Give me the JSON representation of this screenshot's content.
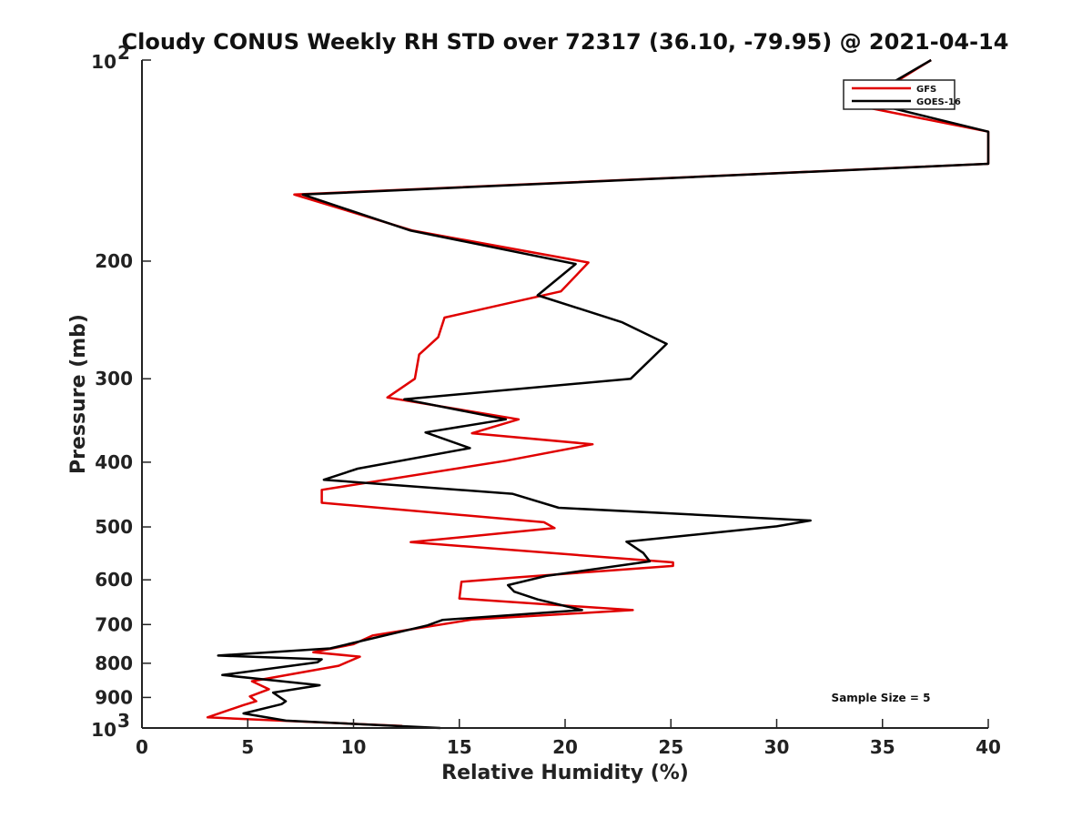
{
  "chart_data": {
    "type": "line",
    "title": "Cloudy CONUS Weekly RH STD over 72317 (36.10, -79.95) @ 2021-04-14",
    "xlabel": "Relative Humidity (%)",
    "ylabel": "Pressure (mb)",
    "xlim": [
      0,
      40
    ],
    "ylim": [
      100,
      1000
    ],
    "yscale": "log",
    "yreversed": true,
    "grid": false,
    "legend_position": "top-right",
    "x_ticks": [
      "0",
      "5",
      "10",
      "15",
      "20",
      "25",
      "30",
      "35",
      "40"
    ],
    "y_ticks": [
      {
        "value": 200,
        "label": "200"
      },
      {
        "value": 300,
        "label": "300"
      },
      {
        "value": 400,
        "label": "400"
      },
      {
        "value": 500,
        "label": "500"
      },
      {
        "value": 600,
        "label": "600"
      },
      {
        "value": 700,
        "label": "700"
      },
      {
        "value": 800,
        "label": "800"
      },
      {
        "value": 900,
        "label": "900"
      }
    ],
    "y_tick_exponents": [
      {
        "value": 100,
        "base": "10",
        "exp": "2"
      },
      {
        "value": 1000,
        "base": "10",
        "exp": "3"
      }
    ],
    "annotation": "Sample Size = 5",
    "series": [
      {
        "name": "GFS",
        "color": "#e00000",
        "points": [
          [
            37.3,
            100
          ],
          [
            33.8,
            117
          ],
          [
            40,
            128
          ],
          [
            40,
            143
          ],
          [
            7.2,
            159
          ],
          [
            12.8,
            180
          ],
          [
            21.1,
            201
          ],
          [
            19.8,
            222
          ],
          [
            14.3,
            243
          ],
          [
            14.0,
            260
          ],
          [
            13.1,
            276
          ],
          [
            12.9,
            300
          ],
          [
            11.6,
            320
          ],
          [
            17.8,
            345
          ],
          [
            15.6,
            362
          ],
          [
            21.3,
            376
          ],
          [
            17.2,
            398
          ],
          [
            8.5,
            440
          ],
          [
            8.5,
            460
          ],
          [
            19.0,
            492
          ],
          [
            19.5,
            502
          ],
          [
            12.7,
            527
          ],
          [
            25.1,
            565
          ],
          [
            25.1,
            572
          ],
          [
            17.7,
            595
          ],
          [
            15.1,
            604
          ],
          [
            15.0,
            640
          ],
          [
            23.2,
            666
          ],
          [
            15.6,
            688
          ],
          [
            10.9,
            727
          ],
          [
            10.0,
            749
          ],
          [
            8.1,
            770
          ],
          [
            10.3,
            782
          ],
          [
            9.3,
            807
          ],
          [
            5.2,
            851
          ],
          [
            6.0,
            875
          ],
          [
            5.1,
            897
          ],
          [
            5.4,
            912
          ],
          [
            4.8,
            924
          ],
          [
            3.1,
            964
          ],
          [
            12.3,
            993
          ]
        ]
      },
      {
        "name": "GOES-16",
        "color": "#000000",
        "points": [
          [
            37.3,
            100
          ],
          [
            34.0,
            115
          ],
          [
            40,
            128
          ],
          [
            40,
            143
          ],
          [
            7.6,
            159
          ],
          [
            12.7,
            180
          ],
          [
            20.5,
            202
          ],
          [
            18.7,
            225
          ],
          [
            22.7,
            247
          ],
          [
            24.8,
            266
          ],
          [
            23.1,
            300
          ],
          [
            12.4,
            322
          ],
          [
            17.2,
            345
          ],
          [
            13.4,
            361
          ],
          [
            15.5,
            381
          ],
          [
            10.2,
            409
          ],
          [
            8.6,
            425
          ],
          [
            17.5,
            446
          ],
          [
            19.7,
            468
          ],
          [
            31.6,
            489
          ],
          [
            30.0,
            499
          ],
          [
            22.9,
            526
          ],
          [
            23.7,
            547
          ],
          [
            24.0,
            563
          ],
          [
            19.1,
            592
          ],
          [
            17.3,
            611
          ],
          [
            17.6,
            625
          ],
          [
            18.7,
            642
          ],
          [
            20.8,
            666
          ],
          [
            14.2,
            689
          ],
          [
            13.5,
            702
          ],
          [
            8.9,
            760
          ],
          [
            3.6,
            779
          ],
          [
            8.5,
            789
          ],
          [
            8.3,
            797
          ],
          [
            3.8,
            833
          ],
          [
            8.4,
            863
          ],
          [
            6.2,
            885
          ],
          [
            6.8,
            912
          ],
          [
            6.6,
            921
          ],
          [
            4.8,
            951
          ],
          [
            6.8,
            975
          ],
          [
            14.1,
            1000
          ]
        ]
      }
    ]
  }
}
